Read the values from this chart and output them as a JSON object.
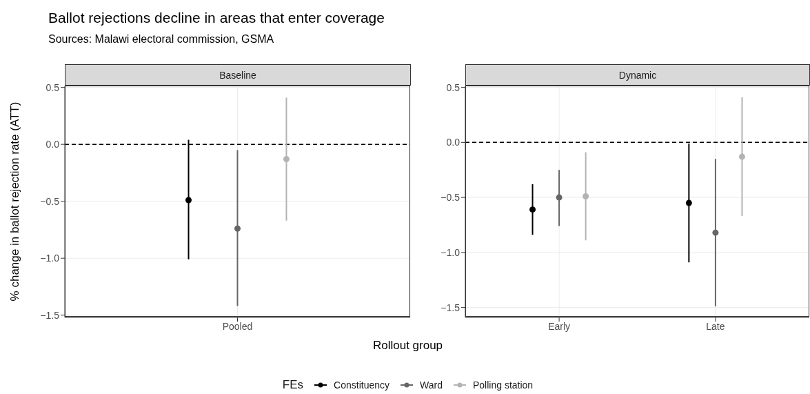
{
  "chart_data": [
    {
      "type": "scatter",
      "title": "Ballot rejections decline in areas that enter coverage",
      "annotations": [
        "Sources: Malawi electoral commission, GSMA"
      ],
      "subtitle": "Baseline",
      "xlabel": "Rollout group",
      "ylabel": "% change in ballot rejection rate (ATT)",
      "legend_title": "FEs",
      "legend": "bottom",
      "marker": "circle",
      "line_style": "solid",
      "grid": true,
      "categories": [
        "Pooled"
      ],
      "ylim": [
        -1.52,
        0.51
      ],
      "yticks": [
        {
          "value": -1.5,
          "label": "−1.5"
        },
        {
          "value": -1.0,
          "label": "−1.0"
        },
        {
          "value": -0.5,
          "label": "−0.5"
        },
        {
          "value": 0,
          "label": "0.0"
        },
        {
          "value": 0.5,
          "label": "0.5"
        }
      ],
      "ref_lines": [
        {
          "axis": "y",
          "value": 0,
          "label": null,
          "color": "#000000",
          "line_style": "dashed"
        }
      ],
      "series": [
        {
          "name": "Constituency",
          "color": "#000000",
          "values": [
            -0.49
          ],
          "errors": [
            [
              -1.01,
              0.04
            ]
          ]
        },
        {
          "name": "Ward",
          "color": "#666666",
          "values": [
            -0.74
          ],
          "errors": [
            [
              -1.42,
              -0.05
            ]
          ]
        },
        {
          "name": "Polling station",
          "color": "#b3b3b3",
          "values": [
            -0.13
          ],
          "errors": [
            [
              -0.67,
              0.41
            ]
          ]
        }
      ]
    },
    {
      "type": "scatter",
      "subtitle": "Dynamic",
      "marker": "circle",
      "line_style": "solid",
      "grid": true,
      "categories": [
        "Early",
        "Late"
      ],
      "ylim": [
        -1.59,
        0.51
      ],
      "yticks": [
        {
          "value": -1.5,
          "label": "−1.5"
        },
        {
          "value": -1.0,
          "label": "−1.0"
        },
        {
          "value": -0.5,
          "label": "−0.5"
        },
        {
          "value": 0,
          "label": "0.0"
        },
        {
          "value": 0.5,
          "label": "0.5"
        }
      ],
      "ref_lines": [
        {
          "axis": "y",
          "value": 0,
          "label": null,
          "color": "#000000",
          "line_style": "dashed"
        }
      ],
      "series": [
        {
          "color": "#000000",
          "values": [
            -0.61,
            -0.55
          ],
          "errors": [
            [
              -0.84,
              -0.38
            ],
            [
              -1.09,
              -0.01
            ]
          ]
        },
        {
          "color": "#666666",
          "values": [
            -0.5,
            -0.82
          ],
          "errors": [
            [
              -0.76,
              -0.25
            ],
            [
              -1.49,
              -0.15
            ]
          ]
        },
        {
          "color": "#b3b3b3",
          "values": [
            -0.49,
            -0.13
          ],
          "errors": [
            [
              -0.89,
              -0.09
            ],
            [
              -0.67,
              0.41
            ]
          ]
        }
      ]
    }
  ]
}
